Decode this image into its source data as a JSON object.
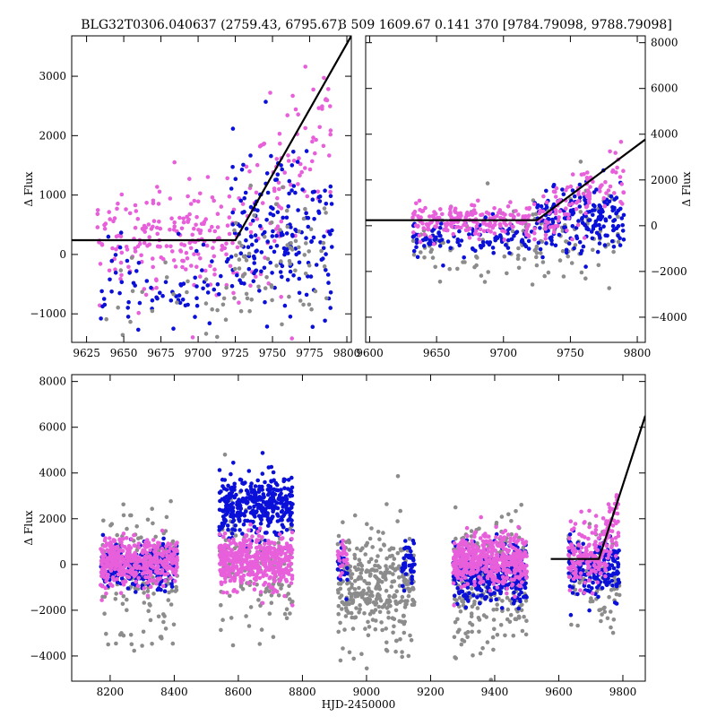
{
  "chart_data": [
    {
      "id": "top-left",
      "type": "scatter",
      "title": "BLG32T0306.040637 (2759.43, 6795.67)",
      "xlabel": "",
      "ylabel": "Δ Flux",
      "xlim": [
        9615,
        9803
      ],
      "ylim": [
        -1480,
        3680
      ],
      "xticks": [
        9625,
        9650,
        9675,
        9700,
        9725,
        9750,
        9775,
        9800
      ],
      "yticks": [
        -1000,
        0,
        1000,
        2000,
        3000
      ],
      "yaxis_side": "left",
      "model_line": {
        "x": [
          9615,
          9725,
          9803
        ],
        "y": [
          240,
          240,
          3680
        ]
      },
      "series": [
        {
          "name": "pink",
          "color": "#e85fdb",
          "segments": [
            {
              "x0": 9632,
              "x1": 9722,
              "ymean": 300,
              "ysd": 420,
              "n": 190
            },
            {
              "x0": 9722,
              "x1": 9790,
              "ymean": 1500,
              "ysd": 750,
              "n": 110
            }
          ]
        },
        {
          "name": "blue",
          "color": "#0a10d8",
          "segments": [
            {
              "x0": 9632,
              "x1": 9722,
              "ymean": -520,
              "ysd": 340,
              "n": 70
            },
            {
              "x0": 9722,
              "x1": 9790,
              "ymean": 300,
              "ysd": 650,
              "n": 190
            }
          ]
        },
        {
          "name": "gray",
          "color": "#8c8c8c",
          "segments": [
            {
              "x0": 9632,
              "x1": 9722,
              "ymean": -750,
              "ysd": 350,
              "n": 25
            },
            {
              "x0": 9722,
              "x1": 9790,
              "ymean": -100,
              "ysd": 600,
              "n": 70
            }
          ]
        }
      ]
    },
    {
      "id": "top-right",
      "type": "scatter",
      "title": "3 509 1609.67 0.141 370 [9784.79098, 9788.79098]",
      "xlabel": "",
      "ylabel": "Δ Flux",
      "xlim": [
        9597,
        9806
      ],
      "ylim": [
        -5100,
        8300
      ],
      "xticks": [
        9600,
        9650,
        9700,
        9750,
        9800
      ],
      "yticks": [
        -4000,
        -2000,
        0,
        2000,
        4000,
        6000,
        8000
      ],
      "yaxis_side": "right",
      "model_line": {
        "x": [
          9597,
          9725,
          9806
        ],
        "y": [
          240,
          240,
          3770
        ]
      },
      "series": [
        {
          "name": "gray",
          "color": "#8c8c8c",
          "segments": [
            {
              "x0": 9632,
              "x1": 9722,
              "ymean": -700,
              "ysd": 900,
              "n": 60
            },
            {
              "x0": 9722,
              "x1": 9790,
              "ymean": -500,
              "ysd": 1100,
              "n": 70
            }
          ]
        },
        {
          "name": "blue",
          "color": "#0a10d8",
          "segments": [
            {
              "x0": 9632,
              "x1": 9722,
              "ymean": -550,
              "ysd": 400,
              "n": 110
            },
            {
              "x0": 9722,
              "x1": 9790,
              "ymean": 250,
              "ysd": 700,
              "n": 200
            }
          ]
        },
        {
          "name": "pink",
          "color": "#e85fdb",
          "segments": [
            {
              "x0": 9632,
              "x1": 9722,
              "ymean": 250,
              "ysd": 380,
              "n": 200
            },
            {
              "x0": 9722,
              "x1": 9790,
              "ymean": 1300,
              "ysd": 800,
              "n": 110
            }
          ]
        }
      ]
    },
    {
      "id": "bottom",
      "type": "scatter",
      "title": "",
      "xlabel": "HJD-2450000",
      "ylabel": "Δ Flux",
      "xlim": [
        8080,
        9870
      ],
      "ylim": [
        -5100,
        8300
      ],
      "xticks": [
        8200,
        8400,
        8600,
        8800,
        9000,
        9200,
        9400,
        9600,
        9800
      ],
      "yticks": [
        -4000,
        -2000,
        0,
        2000,
        4000,
        6000,
        8000
      ],
      "yaxis_side": "left",
      "model_line": {
        "x": [
          9575,
          9725,
          9870
        ],
        "y": [
          240,
          240,
          6500
        ]
      },
      "series": [
        {
          "name": "gray",
          "color": "#8c8c8c",
          "segments": [
            {
              "x0": 8170,
              "x1": 8410,
              "ymean": -600,
              "ysd": 1400,
              "n": 150
            },
            {
              "x0": 8540,
              "x1": 8770,
              "ymean": -300,
              "ysd": 1300,
              "n": 130
            },
            {
              "x0": 8910,
              "x1": 9150,
              "ymean": -1100,
              "ysd": 1300,
              "n": 330
            },
            {
              "x0": 9270,
              "x1": 9500,
              "ymean": -900,
              "ysd": 1400,
              "n": 230
            },
            {
              "x0": 9630,
              "x1": 9790,
              "ymean": -600,
              "ysd": 1200,
              "n": 90
            }
          ]
        },
        {
          "name": "blue",
          "color": "#0a10d8",
          "segments": [
            {
              "x0": 8170,
              "x1": 8410,
              "ymean": -100,
              "ysd": 500,
              "n": 240
            },
            {
              "x0": 8540,
              "x1": 8770,
              "ymean": 2600,
              "ysd": 700,
              "n": 380
            },
            {
              "x0": 8910,
              "x1": 8940,
              "ymean": -100,
              "ysd": 500,
              "n": 25
            },
            {
              "x0": 9110,
              "x1": 9150,
              "ymean": -100,
              "ysd": 550,
              "n": 40
            },
            {
              "x0": 9270,
              "x1": 9500,
              "ymean": -400,
              "ysd": 600,
              "n": 380
            },
            {
              "x0": 9630,
              "x1": 9790,
              "ymean": -200,
              "ysd": 700,
              "n": 180
            }
          ]
        },
        {
          "name": "pink",
          "color": "#e85fdb",
          "segments": [
            {
              "x0": 8170,
              "x1": 8410,
              "ymean": 150,
              "ysd": 500,
              "n": 420
            },
            {
              "x0": 8540,
              "x1": 8770,
              "ymean": 150,
              "ysd": 550,
              "n": 450
            },
            {
              "x0": 8910,
              "x1": 8940,
              "ymean": 300,
              "ysd": 450,
              "n": 25
            },
            {
              "x0": 9270,
              "x1": 9500,
              "ymean": 200,
              "ysd": 550,
              "n": 520
            },
            {
              "x0": 9630,
              "x1": 9790,
              "ymean": 450,
              "ysd": 700,
              "n": 200
            }
          ]
        }
      ]
    }
  ]
}
